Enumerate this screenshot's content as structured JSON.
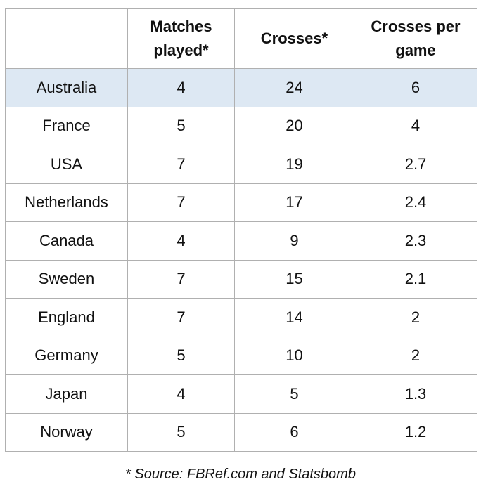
{
  "table": {
    "header": [
      "Matches played*",
      "Crosses*",
      "Crosses per game"
    ],
    "rows": [
      [
        "Australia",
        4,
        24,
        6
      ],
      [
        "France",
        5,
        20,
        4
      ],
      [
        "USA",
        7,
        19,
        2.7
      ],
      [
        "Netherlands",
        7,
        17,
        2.4
      ],
      [
        "Canada",
        4,
        9,
        2.3
      ],
      [
        "Sweden",
        7,
        15,
        2.1
      ],
      [
        "England",
        7,
        14,
        2
      ],
      [
        "Germany",
        5,
        10,
        2
      ],
      [
        "Japan",
        4,
        5,
        1.3
      ],
      [
        "Norway",
        5,
        6,
        1.2
      ]
    ]
  },
  "footnote": "* Source: FBRef.com and Statsbomb"
}
